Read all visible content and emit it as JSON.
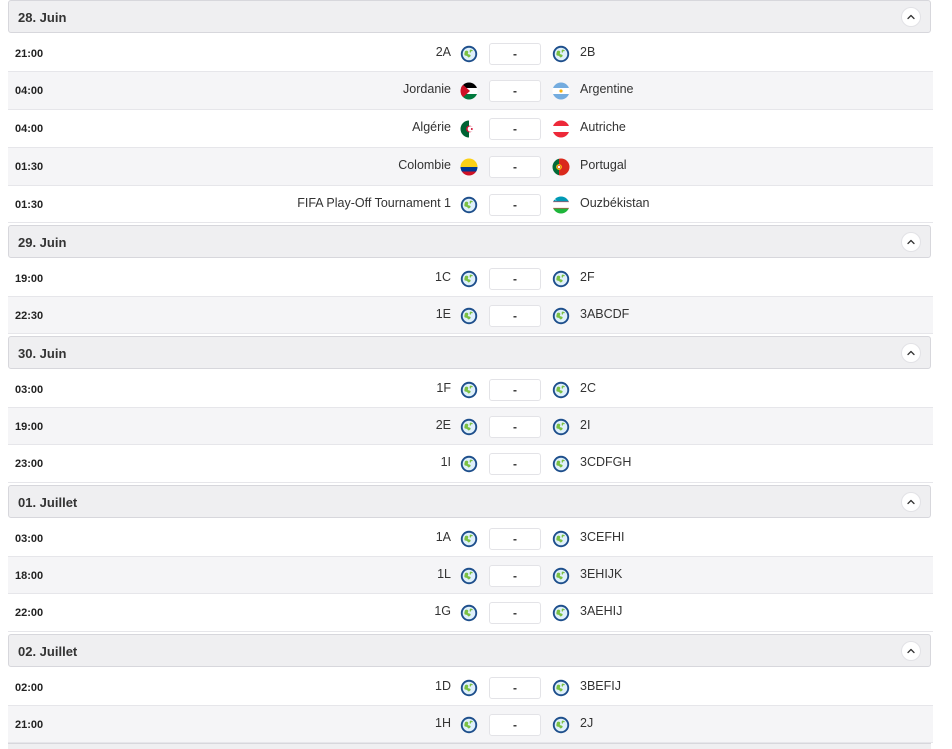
{
  "colors": {
    "header_bg": "#efeff1",
    "row_alt": "#f5f5f7",
    "globe_ring": "#1e4f8c",
    "globe_land": "#7bc043"
  },
  "days": [
    {
      "title": "28. Juin",
      "matches": [
        {
          "time": "21:00",
          "home": "2A",
          "away": "2B",
          "home_flag": "globe-icon",
          "away_flag": "globe-icon",
          "score": "-"
        },
        {
          "time": "04:00",
          "home": "Jordanie",
          "away": "Argentine",
          "home_flag": "jordan-flag-icon",
          "away_flag": "argentina-flag-icon",
          "score": "-"
        },
        {
          "time": "04:00",
          "home": "Algérie",
          "away": "Autriche",
          "home_flag": "algeria-flag-icon",
          "away_flag": "austria-flag-icon",
          "score": "-"
        },
        {
          "time": "01:30",
          "home": "Colombie",
          "away": "Portugal",
          "home_flag": "colombia-flag-icon",
          "away_flag": "portugal-flag-icon",
          "score": "-"
        },
        {
          "time": "01:30",
          "home": "FIFA Play-Off Tournament 1",
          "away": "Ouzbékistan",
          "home_flag": "globe-icon",
          "away_flag": "uzbekistan-flag-icon",
          "score": "-"
        }
      ]
    },
    {
      "title": "29. Juin",
      "matches": [
        {
          "time": "19:00",
          "home": "1C",
          "away": "2F",
          "home_flag": "globe-icon",
          "away_flag": "globe-icon",
          "score": "-"
        },
        {
          "time": "22:30",
          "home": "1E",
          "away": "3ABCDF",
          "home_flag": "globe-icon",
          "away_flag": "globe-icon",
          "score": "-"
        }
      ]
    },
    {
      "title": "30. Juin",
      "matches": [
        {
          "time": "03:00",
          "home": "1F",
          "away": "2C",
          "home_flag": "globe-icon",
          "away_flag": "globe-icon",
          "score": "-"
        },
        {
          "time": "19:00",
          "home": "2E",
          "away": "2I",
          "home_flag": "globe-icon",
          "away_flag": "globe-icon",
          "score": "-"
        },
        {
          "time": "23:00",
          "home": "1I",
          "away": "3CDFGH",
          "home_flag": "globe-icon",
          "away_flag": "globe-icon",
          "score": "-"
        }
      ]
    },
    {
      "title": "01. Juillet",
      "matches": [
        {
          "time": "03:00",
          "home": "1A",
          "away": "3CEFHI",
          "home_flag": "globe-icon",
          "away_flag": "globe-icon",
          "score": "-"
        },
        {
          "time": "18:00",
          "home": "1L",
          "away": "3EHIJK",
          "home_flag": "globe-icon",
          "away_flag": "globe-icon",
          "score": "-"
        },
        {
          "time": "22:00",
          "home": "1G",
          "away": "3AEHIJ",
          "home_flag": "globe-icon",
          "away_flag": "globe-icon",
          "score": "-"
        }
      ]
    },
    {
      "title": "02. Juillet",
      "matches": [
        {
          "time": "02:00",
          "home": "1D",
          "away": "3BEFIJ",
          "home_flag": "globe-icon",
          "away_flag": "globe-icon",
          "score": "-"
        },
        {
          "time": "21:00",
          "home": "1H",
          "away": "2J",
          "home_flag": "globe-icon",
          "away_flag": "globe-icon",
          "score": "-"
        }
      ]
    }
  ]
}
